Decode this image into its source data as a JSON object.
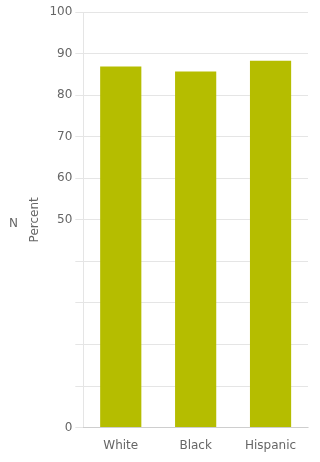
{
  "chart_data": {
    "type": "bar",
    "categories": [
      "White",
      "Black",
      "Hispanic"
    ],
    "values": [
      86.9,
      85.7,
      88.3
    ],
    "color": "#b5bd00",
    "ylabel": "Percent",
    "ylim": [
      0,
      100
    ],
    "yticks": [
      0,
      {
        "value": 10,
        "label": ""
      },
      {
        "value": 20,
        "label": ""
      },
      {
        "value": 30,
        "label": ""
      },
      {
        "value": 40,
        "label": ""
      },
      50,
      60,
      70,
      80,
      90,
      100
    ],
    "annotations": [
      {
        "text": "N",
        "y": 49
      }
    ],
    "grid": true
  }
}
